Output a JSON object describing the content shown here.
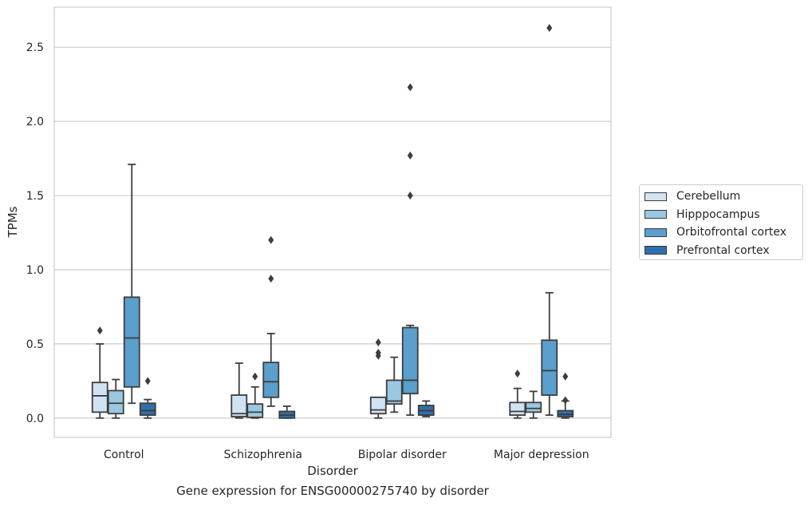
{
  "chart_data": {
    "type": "box",
    "title": "Gene expression for ENSG00000275740 by disorder",
    "xlabel": "Disorder",
    "ylabel": "TPMs",
    "ylim": [
      -0.13,
      2.77
    ],
    "yticks": [
      "0.0",
      "0.5",
      "1.0",
      "1.5",
      "2.0",
      "2.5"
    ],
    "ytick_values": [
      0.0,
      0.5,
      1.0,
      1.5,
      2.0,
      2.5
    ],
    "grid": "horizontal",
    "legend_position": "right",
    "categories": [
      "Control",
      "Schizophrenia",
      "Bipolar disorder",
      "Major depression"
    ],
    "series": [
      {
        "name": "Cerebellum",
        "color": "#d1e2f2",
        "boxes": [
          {
            "whisker_low": 0.0,
            "q1": 0.04,
            "median": 0.15,
            "q3": 0.24,
            "whisker_high": 0.5,
            "outliers": [
              0.59
            ]
          },
          {
            "whisker_low": 0.0,
            "q1": 0.01,
            "median": 0.03,
            "q3": 0.155,
            "whisker_high": 0.37,
            "outliers": []
          },
          {
            "whisker_low": 0.0,
            "q1": 0.03,
            "median": 0.055,
            "q3": 0.14,
            "whisker_high": 0.14,
            "outliers": [
              0.42,
              0.44,
              0.51
            ]
          },
          {
            "whisker_low": 0.0,
            "q1": 0.02,
            "median": 0.045,
            "q3": 0.105,
            "whisker_high": 0.2,
            "outliers": [
              0.3
            ]
          }
        ]
      },
      {
        "name": "Hipppocampus",
        "color": "#9ac8e0",
        "boxes": [
          {
            "whisker_low": 0.0,
            "q1": 0.03,
            "median": 0.1,
            "q3": 0.185,
            "whisker_high": 0.26,
            "outliers": []
          },
          {
            "whisker_low": 0.0,
            "q1": 0.005,
            "median": 0.04,
            "q3": 0.095,
            "whisker_high": 0.21,
            "outliers": [
              0.28
            ]
          },
          {
            "whisker_low": 0.04,
            "q1": 0.095,
            "median": 0.115,
            "q3": 0.255,
            "whisker_high": 0.41,
            "outliers": []
          },
          {
            "whisker_low": 0.0,
            "q1": 0.04,
            "median": 0.065,
            "q3": 0.105,
            "whisker_high": 0.18,
            "outliers": []
          }
        ]
      },
      {
        "name": "Orbitofrontal cortex",
        "color": "#5a9fcd",
        "boxes": [
          {
            "whisker_low": 0.1,
            "q1": 0.21,
            "median": 0.54,
            "q3": 0.815,
            "whisker_high": 1.71,
            "outliers": []
          },
          {
            "whisker_low": 0.08,
            "q1": 0.14,
            "median": 0.245,
            "q3": 0.375,
            "whisker_high": 0.57,
            "outliers": [
              0.94,
              1.2
            ]
          },
          {
            "whisker_low": 0.02,
            "q1": 0.165,
            "median": 0.255,
            "q3": 0.61,
            "whisker_high": 0.625,
            "outliers": [
              1.5,
              1.77,
              2.23
            ]
          },
          {
            "whisker_low": 0.02,
            "q1": 0.155,
            "median": 0.32,
            "q3": 0.525,
            "whisker_high": 0.845,
            "outliers": [
              2.63
            ]
          }
        ]
      },
      {
        "name": "Prefrontal cortex",
        "color": "#2f6fab",
        "boxes": [
          {
            "whisker_low": 0.0,
            "q1": 0.02,
            "median": 0.05,
            "q3": 0.1,
            "whisker_high": 0.125,
            "outliers": [
              0.25
            ]
          },
          {
            "whisker_low": 0.0,
            "q1": 0.0,
            "median": 0.02,
            "q3": 0.045,
            "whisker_high": 0.08,
            "outliers": []
          },
          {
            "whisker_low": 0.01,
            "q1": 0.02,
            "median": 0.05,
            "q3": 0.085,
            "whisker_high": 0.115,
            "outliers": []
          },
          {
            "whisker_low": 0.0,
            "q1": 0.01,
            "median": 0.025,
            "q3": 0.05,
            "whisker_high": 0.115,
            "outliers": [
              0.12,
              0.28
            ]
          }
        ]
      }
    ]
  }
}
